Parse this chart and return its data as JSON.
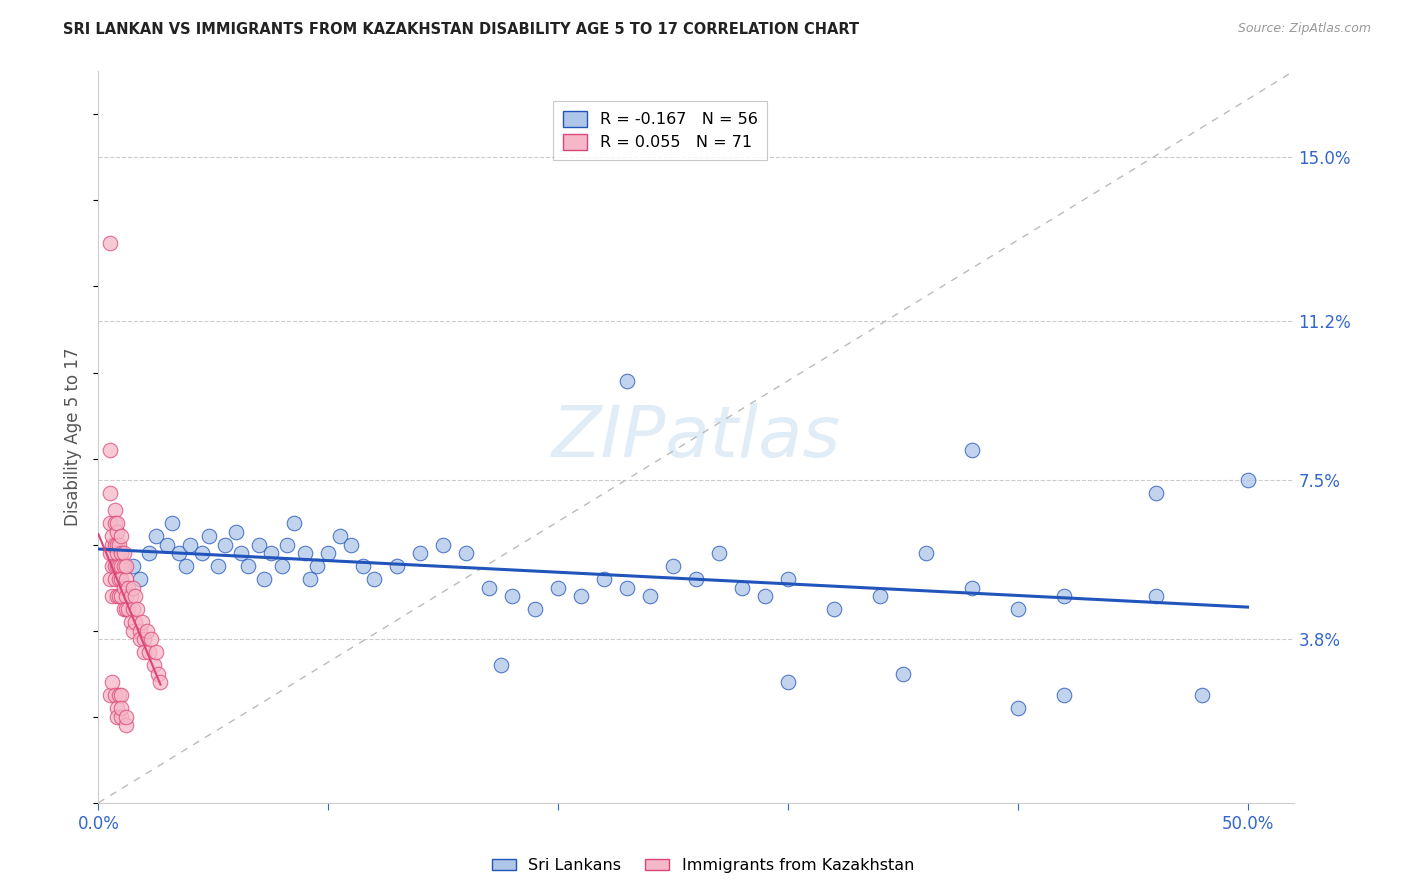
{
  "title": "SRI LANKAN VS IMMIGRANTS FROM KAZAKHSTAN DISABILITY AGE 5 TO 17 CORRELATION CHART",
  "source": "Source: ZipAtlas.com",
  "ylabel": "Disability Age 5 to 17",
  "xlim": [
    0.0,
    0.52
  ],
  "ylim": [
    0.0,
    0.17
  ],
  "ytick_positions": [
    0.038,
    0.075,
    0.112,
    0.15
  ],
  "ytick_labels": [
    "3.8%",
    "7.5%",
    "11.2%",
    "15.0%"
  ],
  "blue_R": -0.167,
  "blue_N": 56,
  "pink_R": 0.055,
  "pink_N": 71,
  "blue_color": "#aec6e8",
  "blue_line_color": "#2255bb",
  "pink_color": "#f5b8c8",
  "pink_line_color": "#dd4477",
  "diag_color": "#bbbbbb",
  "background_color": "#ffffff",
  "grid_color": "#cccccc",
  "watermark": "ZIPatlas",
  "legend_label_blue": "Sri Lankans",
  "legend_label_pink": "Immigrants from Kazakhstan",
  "blue_scatter_x": [
    0.01,
    0.015,
    0.018,
    0.022,
    0.025,
    0.03,
    0.032,
    0.035,
    0.038,
    0.04,
    0.045,
    0.048,
    0.052,
    0.055,
    0.06,
    0.062,
    0.065,
    0.07,
    0.072,
    0.075,
    0.08,
    0.082,
    0.085,
    0.09,
    0.092,
    0.095,
    0.1,
    0.105,
    0.11,
    0.115,
    0.12,
    0.13,
    0.14,
    0.15,
    0.16,
    0.17,
    0.18,
    0.19,
    0.2,
    0.21,
    0.22,
    0.23,
    0.24,
    0.25,
    0.26,
    0.27,
    0.28,
    0.29,
    0.3,
    0.32,
    0.34,
    0.36,
    0.38,
    0.4,
    0.42,
    0.46
  ],
  "blue_scatter_y": [
    0.058,
    0.055,
    0.052,
    0.058,
    0.062,
    0.06,
    0.065,
    0.058,
    0.055,
    0.06,
    0.058,
    0.062,
    0.055,
    0.06,
    0.063,
    0.058,
    0.055,
    0.06,
    0.052,
    0.058,
    0.055,
    0.06,
    0.065,
    0.058,
    0.052,
    0.055,
    0.058,
    0.062,
    0.06,
    0.055,
    0.052,
    0.055,
    0.058,
    0.06,
    0.058,
    0.05,
    0.048,
    0.045,
    0.05,
    0.048,
    0.052,
    0.05,
    0.048,
    0.055,
    0.052,
    0.058,
    0.05,
    0.048,
    0.052,
    0.045,
    0.048,
    0.058,
    0.05,
    0.045,
    0.048,
    0.048
  ],
  "blue_scatter_y_outliers": [
    0.098,
    0.082,
    0.075,
    0.072,
    0.032,
    0.028,
    0.03,
    0.025,
    0.025,
    0.022
  ],
  "blue_scatter_x_outliers": [
    0.23,
    0.38,
    0.5,
    0.46,
    0.175,
    0.3,
    0.35,
    0.42,
    0.48,
    0.4
  ],
  "pink_scatter_x": [
    0.005,
    0.005,
    0.005,
    0.005,
    0.005,
    0.005,
    0.006,
    0.006,
    0.006,
    0.006,
    0.007,
    0.007,
    0.007,
    0.007,
    0.007,
    0.008,
    0.008,
    0.008,
    0.008,
    0.008,
    0.008,
    0.009,
    0.009,
    0.009,
    0.009,
    0.01,
    0.01,
    0.01,
    0.01,
    0.01,
    0.011,
    0.011,
    0.011,
    0.011,
    0.012,
    0.012,
    0.012,
    0.012,
    0.013,
    0.013,
    0.014,
    0.014,
    0.015,
    0.015,
    0.015,
    0.016,
    0.016,
    0.017,
    0.018,
    0.018,
    0.019,
    0.02,
    0.02,
    0.021,
    0.022,
    0.023,
    0.024,
    0.025,
    0.026,
    0.027,
    0.005,
    0.006,
    0.007,
    0.008,
    0.008,
    0.009,
    0.01,
    0.01,
    0.01,
    0.012,
    0.012
  ],
  "pink_scatter_y": [
    0.13,
    0.082,
    0.072,
    0.065,
    0.058,
    0.052,
    0.048,
    0.055,
    0.06,
    0.062,
    0.068,
    0.065,
    0.06,
    0.055,
    0.052,
    0.048,
    0.055,
    0.06,
    0.063,
    0.065,
    0.058,
    0.055,
    0.052,
    0.048,
    0.06,
    0.062,
    0.058,
    0.055,
    0.052,
    0.048,
    0.055,
    0.058,
    0.05,
    0.045,
    0.052,
    0.048,
    0.045,
    0.055,
    0.05,
    0.045,
    0.048,
    0.042,
    0.05,
    0.045,
    0.04,
    0.048,
    0.042,
    0.045,
    0.04,
    0.038,
    0.042,
    0.038,
    0.035,
    0.04,
    0.035,
    0.038,
    0.032,
    0.035,
    0.03,
    0.028,
    0.025,
    0.028,
    0.025,
    0.022,
    0.02,
    0.025,
    0.02,
    0.025,
    0.022,
    0.018,
    0.02
  ]
}
